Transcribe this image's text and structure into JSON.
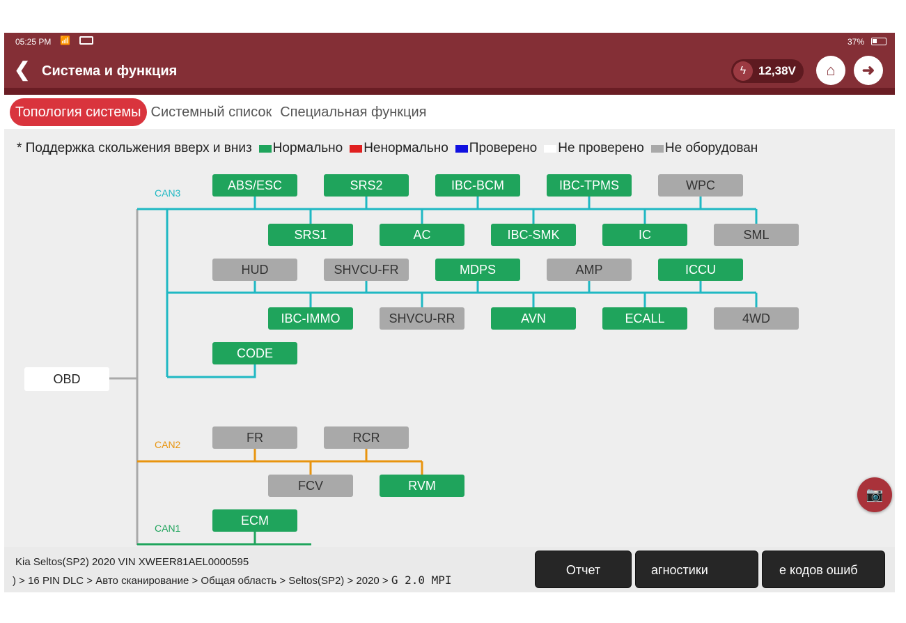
{
  "status_bar": {
    "time": "05:25 PM",
    "battery": "37%"
  },
  "header": {
    "title": "Система и функция",
    "voltage": "12,38V"
  },
  "tabs": [
    {
      "label": "Топология системы",
      "active": true
    },
    {
      "label": "Системный список",
      "active": false
    },
    {
      "label": "Специальная функция",
      "active": false
    }
  ],
  "legend": {
    "hint": "* Поддержка скольжения вверх и вниз",
    "items": [
      {
        "label": "Нормально",
        "color": "#1fa45c"
      },
      {
        "label": "Ненормально",
        "color": "#e02020"
      },
      {
        "label": "Проверено",
        "color": "#1010e0"
      },
      {
        "label": "Не проверено",
        "color": "#ffffff"
      },
      {
        "label": "Не оборудован",
        "color": "#a9a9a9"
      }
    ]
  },
  "topology": {
    "root": "OBD",
    "buses": [
      {
        "name": "CAN3",
        "color": "#1fb8c3",
        "rows": [
          [
            {
              "n": "ABS/ESC",
              "s": "ok"
            },
            {
              "n": "SRS2",
              "s": "ok"
            },
            {
              "n": "IBC-BCM",
              "s": "ok"
            },
            {
              "n": "IBC-TPMS",
              "s": "ok"
            },
            {
              "n": "WPC",
              "s": "na"
            }
          ],
          [
            {
              "n": "SRS1",
              "s": "ok"
            },
            {
              "n": "AC",
              "s": "ok"
            },
            {
              "n": "IBC-SMK",
              "s": "ok"
            },
            {
              "n": "IC",
              "s": "ok"
            },
            {
              "n": "SML",
              "s": "na"
            }
          ],
          [
            {
              "n": "HUD",
              "s": "na"
            },
            {
              "n": "SHVCU-FR",
              "s": "na"
            },
            {
              "n": "MDPS",
              "s": "ok"
            },
            {
              "n": "AMP",
              "s": "na"
            },
            {
              "n": "ICCU",
              "s": "ok"
            }
          ],
          [
            {
              "n": "IBC-IMMO",
              "s": "ok"
            },
            {
              "n": "SHVCU-RR",
              "s": "na"
            },
            {
              "n": "AVN",
              "s": "ok"
            },
            {
              "n": "ECALL",
              "s": "ok"
            },
            {
              "n": "4WD",
              "s": "na"
            }
          ],
          [
            {
              "n": "CODE",
              "s": "ok"
            }
          ]
        ]
      },
      {
        "name": "CAN2",
        "color": "#e8940e",
        "rows": [
          [
            {
              "n": "FR",
              "s": "na"
            },
            {
              "n": "RCR",
              "s": "na"
            }
          ],
          [
            {
              "n": "FCV",
              "s": "na"
            },
            {
              "n": "RVM",
              "s": "ok"
            }
          ]
        ]
      },
      {
        "name": "CAN1",
        "color": "#1fa45c",
        "rows": [
          [
            {
              "n": "ECM",
              "s": "ok"
            }
          ]
        ]
      }
    ]
  },
  "footer": {
    "vehicle": "Kia   Seltos(SP2)   2020   VIN   XWEER81AEL0000595",
    "path": ") > 16 PIN DLC > Авто сканирование > Общая область > Seltos(SP2) > 2020 > ",
    "engine": "G 2.0 MPI",
    "buttons": [
      "Отчет",
      "агностики",
      "е кодов ошиб"
    ]
  }
}
